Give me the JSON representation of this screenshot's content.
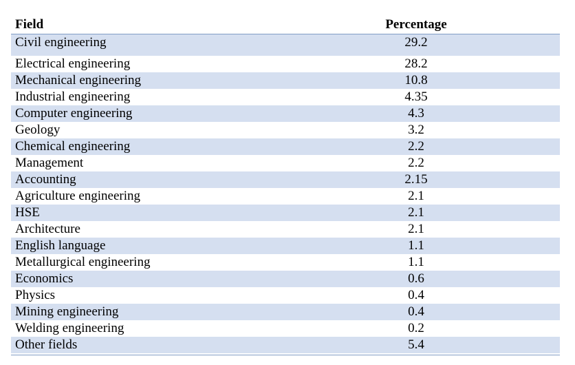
{
  "table": {
    "headers": {
      "field": "Field",
      "percentage": "Percentage"
    },
    "rows": [
      {
        "field": "Civil engineering",
        "percentage": "29.2"
      },
      {
        "field": "Electrical engineering",
        "percentage": "28.2"
      },
      {
        "field": "Mechanical engineering",
        "percentage": "10.8"
      },
      {
        "field": "Industrial engineering",
        "percentage": "4.35"
      },
      {
        "field": "Computer engineering",
        "percentage": "4.3"
      },
      {
        "field": "Geology",
        "percentage": "3.2"
      },
      {
        "field": "Chemical engineering",
        "percentage": "2.2"
      },
      {
        "field": "Management",
        "percentage": "2.2"
      },
      {
        "field": "Accounting",
        "percentage": "2.15"
      },
      {
        "field": "Agriculture engineering",
        "percentage": "2.1"
      },
      {
        "field": "HSE",
        "percentage": "2.1"
      },
      {
        "field": "Architecture",
        "percentage": "2.1"
      },
      {
        "field": "English language",
        "percentage": "1.1"
      },
      {
        "field": "Metallurgical engineering",
        "percentage": "1.1"
      },
      {
        "field": "Economics",
        "percentage": "0.6"
      },
      {
        "field": "Physics",
        "percentage": "0.4"
      },
      {
        "field": "Mining engineering",
        "percentage": "0.4"
      },
      {
        "field": "Welding engineering",
        "percentage": "0.2"
      },
      {
        "field": "Other fields",
        "percentage": "5.4"
      }
    ]
  }
}
